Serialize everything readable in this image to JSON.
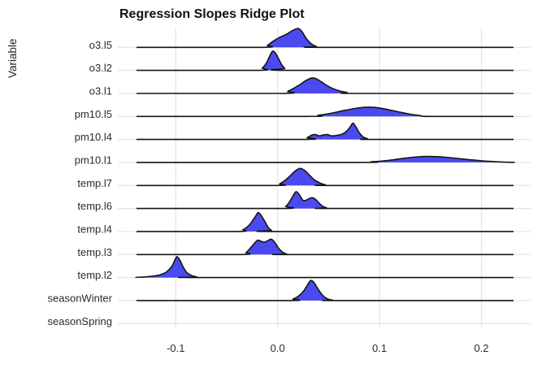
{
  "chart_data": {
    "type": "ridgeline",
    "title": "Regression Slopes Ridge Plot",
    "ylabel": "Variable",
    "xlabel": "",
    "x_ticks": [
      -0.1,
      0.0,
      0.1,
      0.2
    ],
    "x_tick_labels": [
      "-0.1",
      "0.0",
      "0.1",
      "0.2"
    ],
    "x_domain": [
      -0.1385,
      0.2315
    ],
    "grid": "major-only",
    "legend": "none",
    "colors": {
      "ridge_fill": "#4a4af0",
      "ridge_stroke": "#141414",
      "gridline": "#e3e3e3",
      "axis_text": "#2b2b2b",
      "title_text": "#111111",
      "background": "#ffffff"
    },
    "note": "density arrays are [slope_value, relative_density_height]; heights in plot px units read off the figure",
    "series": [
      {
        "label": "o3.l5",
        "density": [
          [
            -0.016,
            0
          ],
          [
            -0.01,
            2.5
          ],
          [
            -0.005,
            7
          ],
          [
            0.0,
            11
          ],
          [
            0.005,
            14
          ],
          [
            0.01,
            17
          ],
          [
            0.015,
            21
          ],
          [
            0.02,
            23.3
          ],
          [
            0.0235,
            20
          ],
          [
            0.027,
            13
          ],
          [
            0.03,
            8
          ],
          [
            0.034,
            3.5
          ],
          [
            0.038,
            1
          ],
          [
            0.041,
            0
          ]
        ]
      },
      {
        "label": "o3.l2",
        "density": [
          [
            -0.02,
            0
          ],
          [
            -0.015,
            3
          ],
          [
            -0.011,
            9
          ],
          [
            -0.008,
            17
          ],
          [
            -0.005,
            23.5
          ],
          [
            -0.002,
            21
          ],
          [
            0.001,
            14
          ],
          [
            0.004,
            7
          ],
          [
            0.007,
            2.5
          ],
          [
            0.011,
            0
          ]
        ]
      },
      {
        "label": "o3.l1",
        "density": [
          [
            0.004,
            0
          ],
          [
            0.01,
            2.5
          ],
          [
            0.016,
            6.5
          ],
          [
            0.022,
            11
          ],
          [
            0.028,
            16
          ],
          [
            0.033,
            18.8
          ],
          [
            0.037,
            18.5
          ],
          [
            0.042,
            15
          ],
          [
            0.048,
            10
          ],
          [
            0.054,
            6
          ],
          [
            0.061,
            3
          ],
          [
            0.068,
            1.2
          ],
          [
            0.076,
            0
          ]
        ]
      },
      {
        "label": "pm10.l5",
        "density": [
          [
            0.028,
            0
          ],
          [
            0.04,
            1.5
          ],
          [
            0.052,
            3.8
          ],
          [
            0.064,
            7
          ],
          [
            0.076,
            9.8
          ],
          [
            0.086,
            11.2
          ],
          [
            0.096,
            11
          ],
          [
            0.106,
            9
          ],
          [
            0.118,
            5.8
          ],
          [
            0.13,
            2.8
          ],
          [
            0.14,
            1
          ],
          [
            0.15,
            0
          ]
        ]
      },
      {
        "label": "pm10.l4",
        "density": [
          [
            0.024,
            0
          ],
          [
            0.029,
            2.2
          ],
          [
            0.034,
            5.6
          ],
          [
            0.037,
            6
          ],
          [
            0.041,
            4.4
          ],
          [
            0.045,
            5.6
          ],
          [
            0.049,
            6
          ],
          [
            0.052,
            4.6
          ],
          [
            0.056,
            4.6
          ],
          [
            0.06,
            5.4
          ],
          [
            0.064,
            7
          ],
          [
            0.068,
            10.5
          ],
          [
            0.0715,
            16
          ],
          [
            0.074,
            20
          ],
          [
            0.0765,
            16
          ],
          [
            0.08,
            8.5
          ],
          [
            0.084,
            3
          ],
          [
            0.088,
            1
          ],
          [
            0.093,
            0
          ]
        ]
      },
      {
        "label": "pm10.l1",
        "density": [
          [
            0.078,
            0
          ],
          [
            0.092,
            0.8
          ],
          [
            0.106,
            2.2
          ],
          [
            0.12,
            4.4
          ],
          [
            0.133,
            6.4
          ],
          [
            0.145,
            7.3
          ],
          [
            0.157,
            7.1
          ],
          [
            0.169,
            5.9
          ],
          [
            0.182,
            4.2
          ],
          [
            0.195,
            2.6
          ],
          [
            0.208,
            1.3
          ],
          [
            0.22,
            0.5
          ],
          [
            0.2315,
            0.15
          ]
        ]
      },
      {
        "label": "temp.l7",
        "density": [
          [
            -0.004,
            0
          ],
          [
            0.002,
            2
          ],
          [
            0.007,
            6
          ],
          [
            0.012,
            11.5
          ],
          [
            0.017,
            17.5
          ],
          [
            0.022,
            21
          ],
          [
            0.0265,
            18.5
          ],
          [
            0.031,
            13
          ],
          [
            0.036,
            7
          ],
          [
            0.042,
            2.8
          ],
          [
            0.047,
            0.8
          ],
          [
            0.051,
            0
          ]
        ]
      },
      {
        "label": "temp.l6",
        "density": [
          [
            0.004,
            0
          ],
          [
            0.008,
            2.5
          ],
          [
            0.011,
            7
          ],
          [
            0.0145,
            14
          ],
          [
            0.018,
            20.7
          ],
          [
            0.0215,
            16.5
          ],
          [
            0.0245,
            10.5
          ],
          [
            0.027,
            9.8
          ],
          [
            0.03,
            11.5
          ],
          [
            0.0335,
            13.3
          ],
          [
            0.037,
            11.5
          ],
          [
            0.04,
            7.5
          ],
          [
            0.044,
            3
          ],
          [
            0.048,
            0.8
          ],
          [
            0.051,
            0
          ]
        ]
      },
      {
        "label": "temp.l4",
        "density": [
          [
            -0.04,
            0
          ],
          [
            -0.034,
            2.2
          ],
          [
            -0.029,
            6.5
          ],
          [
            -0.025,
            12.5
          ],
          [
            -0.021,
            20
          ],
          [
            -0.019,
            23.3
          ],
          [
            -0.016,
            19.5
          ],
          [
            -0.012,
            11
          ],
          [
            -0.009,
            4.5
          ],
          [
            -0.006,
            1.3
          ],
          [
            -0.002,
            0
          ]
        ]
      },
      {
        "label": "temp.l3",
        "density": [
          [
            -0.036,
            0
          ],
          [
            -0.031,
            2.5
          ],
          [
            -0.027,
            7.5
          ],
          [
            -0.023,
            13.5
          ],
          [
            -0.0195,
            17.7
          ],
          [
            -0.016,
            16.2
          ],
          [
            -0.013,
            15.2
          ],
          [
            -0.01,
            16.8
          ],
          [
            -0.007,
            18.8
          ],
          [
            -0.005,
            18
          ],
          [
            -0.002,
            13.5
          ],
          [
            0.001,
            7.5
          ],
          [
            0.005,
            2.8
          ],
          [
            0.009,
            0.6
          ],
          [
            0.012,
            0
          ]
        ]
      },
      {
        "label": "temp.l2",
        "density": [
          [
            -0.1385,
            0.3
          ],
          [
            -0.13,
            0.8
          ],
          [
            -0.122,
            1.8
          ],
          [
            -0.115,
            3.5
          ],
          [
            -0.109,
            7
          ],
          [
            -0.104,
            13.5
          ],
          [
            -0.101,
            21
          ],
          [
            -0.099,
            25.7
          ],
          [
            -0.096,
            21.5
          ],
          [
            -0.0925,
            12.5
          ],
          [
            -0.089,
            6
          ],
          [
            -0.084,
            2.2
          ],
          [
            -0.079,
            0.6
          ],
          [
            -0.073,
            0
          ]
        ]
      },
      {
        "label": "seasonWinter",
        "density": [
          [
            0.009,
            0
          ],
          [
            0.015,
            1.8
          ],
          [
            0.02,
            5
          ],
          [
            0.025,
            11
          ],
          [
            0.029,
            18.5
          ],
          [
            0.0325,
            24.7
          ],
          [
            0.036,
            21.5
          ],
          [
            0.04,
            13.5
          ],
          [
            0.0445,
            6
          ],
          [
            0.049,
            2
          ],
          [
            0.054,
            0.5
          ],
          [
            0.058,
            0
          ]
        ]
      },
      {
        "label": "seasonSpring",
        "density": []
      }
    ]
  }
}
